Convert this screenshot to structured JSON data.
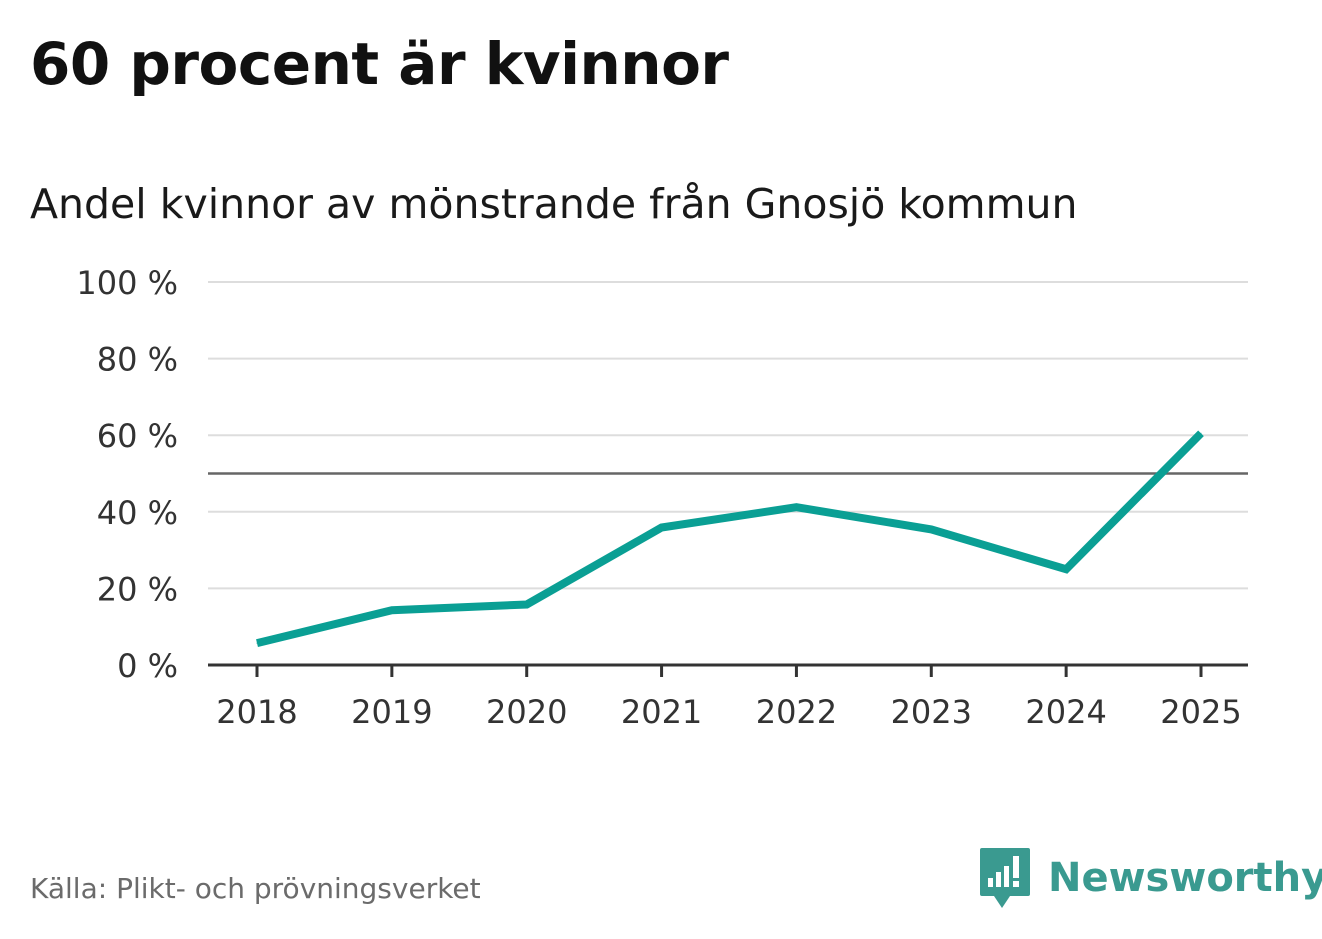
{
  "title": "60 procent är kvinnor",
  "subtitle": "Andel kvinnor av mönstrande från Gnosjö kommun",
  "source": "Källa: Plikt- och prövningsverket",
  "brand": "Newsworthy",
  "brand_logo_icon": "chat-bubble-bar-chart-icon",
  "colors": {
    "line": "#0a9f94",
    "grid": "#dddddd",
    "reference": "#666666",
    "axis": "#333333",
    "brand": "#3a9a90"
  },
  "chart_data": {
    "type": "line",
    "title": "60 procent är kvinnor",
    "subtitle": "Andel kvinnor av mönstrande från Gnosjö kommun",
    "x": [
      "2018",
      "2019",
      "2020",
      "2021",
      "2022",
      "2023",
      "2024",
      "2025"
    ],
    "series": [
      {
        "values": [
          5.7,
          14.3,
          15.8,
          35.9,
          41.2,
          35.4,
          25.0,
          60.5
        ]
      }
    ],
    "yticks": [
      "0 %",
      "20 %",
      "40 %",
      "60 %",
      "80 %",
      "100 %"
    ],
    "ylim": [
      0,
      100
    ],
    "reference_line": 50,
    "grid": true,
    "legend": "none"
  }
}
